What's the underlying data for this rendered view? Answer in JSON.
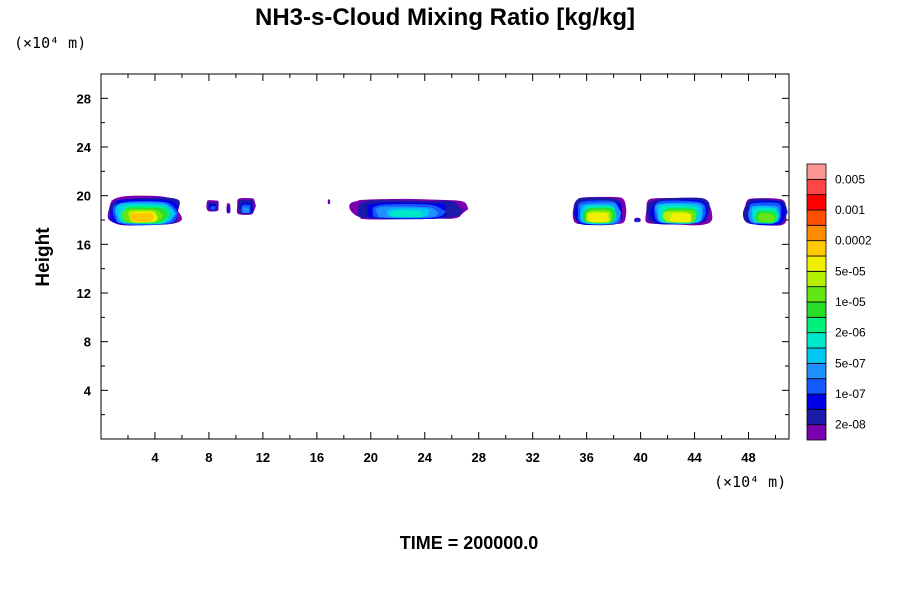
{
  "chart_data": {
    "type": "heatmap",
    "title": "NH3-s-Cloud Mixing Ratio [kg/kg]",
    "ylabel": "Height",
    "x_unit": "(×10⁴ m)",
    "y_unit": "(×10⁴ m)",
    "time_label": "TIME = 200000.0",
    "xlim": [
      0,
      51
    ],
    "ylim": [
      0,
      30
    ],
    "x_ticks": [
      4,
      8,
      12,
      16,
      20,
      24,
      28,
      32,
      36,
      40,
      44,
      48
    ],
    "y_ticks": [
      4,
      8,
      12,
      16,
      20,
      24,
      28
    ],
    "colorbar": {
      "colors": [
        "#7a00b0",
        "#1a1aa6",
        "#0000e6",
        "#1458ff",
        "#1e90ff",
        "#00c8f0",
        "#00e6c8",
        "#00f07a",
        "#28dc28",
        "#64e614",
        "#b4f000",
        "#f0f000",
        "#ffc800",
        "#ff8c00",
        "#ff5000",
        "#ff0000",
        "#ff4646",
        "#ff9696"
      ],
      "labels": [
        "2e-08",
        "1e-07",
        "5e-07",
        "2e-06",
        "1e-05",
        "5e-05",
        "0.0002",
        "0.001",
        "0.005"
      ]
    },
    "cloud_patches": [
      {
        "x_range": [
          0.2,
          6.2
        ],
        "y_range": [
          17.5,
          20.0
        ],
        "max_level": 12
      },
      {
        "x_range": [
          7.8,
          8.8
        ],
        "y_range": [
          18.7,
          19.7
        ],
        "max_level": 3
      },
      {
        "x_range": [
          9.3,
          9.6
        ],
        "y_range": [
          18.5,
          19.4
        ],
        "max_level": 2
      },
      {
        "x_range": [
          10.0,
          11.5
        ],
        "y_range": [
          18.4,
          19.9
        ],
        "max_level": 4
      },
      {
        "x_range": [
          16.8,
          17.0
        ],
        "y_range": [
          19.3,
          19.7
        ],
        "max_level": 1
      },
      {
        "x_range": [
          18.2,
          27.2
        ],
        "y_range": [
          18.0,
          19.8
        ],
        "max_level": 6
      },
      {
        "x_range": [
          34.8,
          39.0
        ],
        "y_range": [
          17.5,
          20.0
        ],
        "max_level": 11
      },
      {
        "x_range": [
          39.5,
          40.0
        ],
        "y_range": [
          17.8,
          18.2
        ],
        "max_level": 3
      },
      {
        "x_range": [
          40.2,
          45.5
        ],
        "y_range": [
          17.5,
          20.0
        ],
        "max_level": 11
      },
      {
        "x_range": [
          47.5,
          51.0
        ],
        "y_range": [
          17.5,
          19.9
        ],
        "max_level": 9
      }
    ]
  }
}
